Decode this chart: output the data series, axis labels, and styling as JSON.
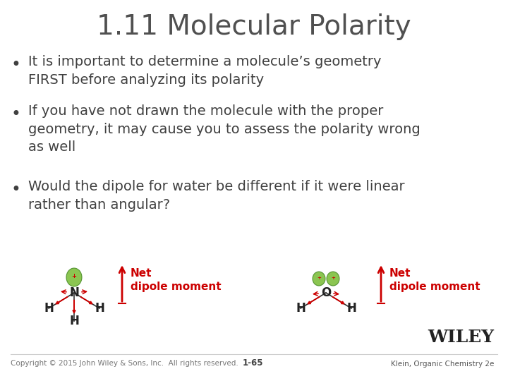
{
  "title": "1.11 Molecular Polarity",
  "background_color": "#ffffff",
  "title_color": "#505050",
  "title_fontsize": 28,
  "bullet_color": "#404040",
  "bullet_fontsize": 14,
  "bullet_points": [
    "It is important to determine a molecule’s geometry\nFIRST before analyzing its polarity",
    "If you have not drawn the molecule with the proper\ngeometry, it may cause you to assess the polarity wrong\nas well",
    "Would the dipole for water be different if it were linear\nrather than angular?"
  ],
  "net_dipole_color": "#cc0000",
  "footer_left": "Copyright © 2015 John Wiley & Sons, Inc.  All rights reserved.",
  "footer_center": "1-65",
  "footer_right": "Klein, Organic Chemistry 2e",
  "footer_fontsize": 7.5,
  "wiley_fontsize": 16
}
